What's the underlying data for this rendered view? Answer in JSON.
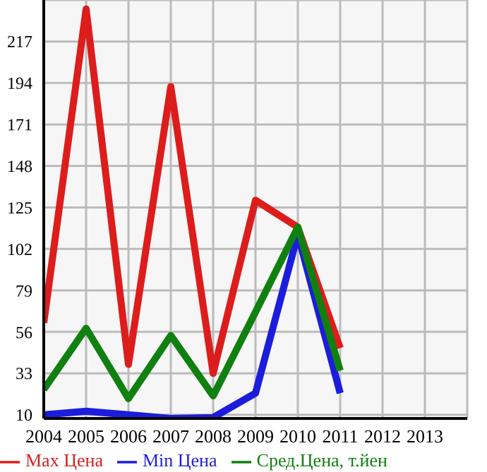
{
  "chart_data": {
    "type": "line",
    "x": [
      2004,
      2005,
      2006,
      2007,
      2008,
      2009,
      2010,
      2011
    ],
    "series": [
      {
        "name": "Max Цена",
        "color": "#dd1c1c",
        "values": [
          61,
          235,
          38,
          192,
          33,
          129,
          114,
          47
        ]
      },
      {
        "name": "Min Цена",
        "color": "#1c1cdd",
        "values": [
          10,
          12,
          10,
          8,
          8.5,
          22,
          110,
          22
        ]
      },
      {
        "name": "Сред.Цена, т.йен",
        "color": "#108010",
        "values": [
          24,
          58,
          19,
          54,
          20.5,
          67,
          114,
          34.5
        ]
      }
    ],
    "xlim": [
      2004,
      2014
    ],
    "xticks": [
      2004,
      2005,
      2006,
      2007,
      2008,
      2009,
      2010,
      2011,
      2012,
      2013
    ],
    "ylim": [
      8,
      240
    ],
    "yticks": [
      10,
      33,
      56,
      79,
      102,
      125,
      148,
      171,
      194,
      217
    ],
    "grid": true,
    "legend": "bottom",
    "marker": "none",
    "line_style": "solid"
  }
}
